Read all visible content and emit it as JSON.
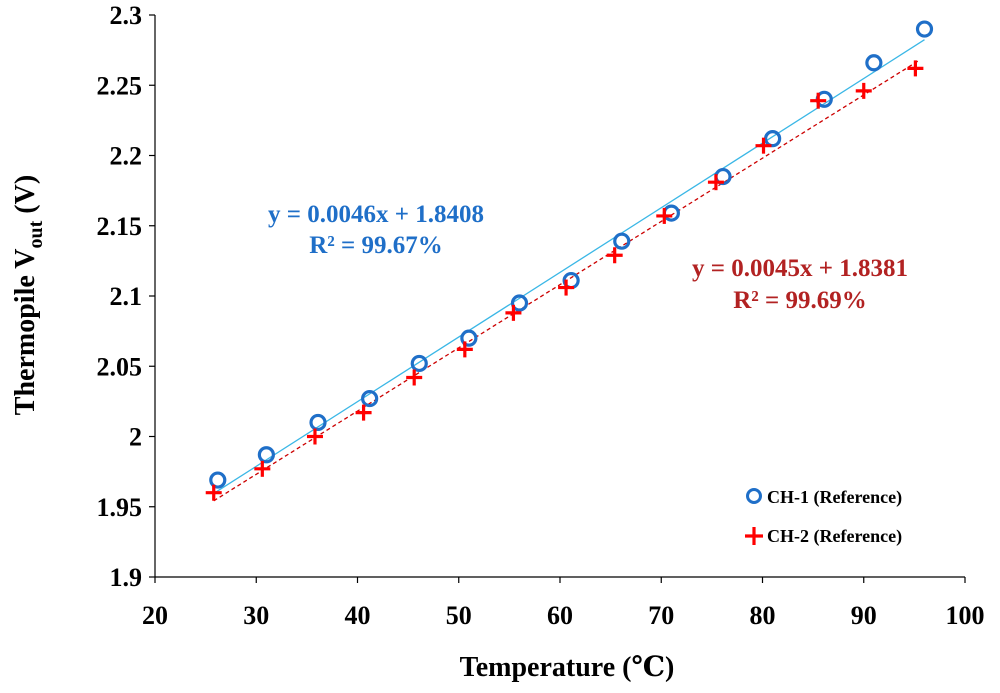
{
  "chart_data": {
    "type": "scatter",
    "xlabel": "Temperature (℃)",
    "ylabel": "Thermopile V",
    "ylabel_sub": "out",
    "ylabel_unit": " (V)",
    "xlim": [
      20,
      100
    ],
    "ylim": [
      1.9,
      2.3
    ],
    "xticks": [
      20,
      30,
      40,
      50,
      60,
      70,
      80,
      90,
      100
    ],
    "yticks": [
      1.9,
      1.95,
      2,
      2.05,
      2.1,
      2.15,
      2.2,
      2.25,
      2.3
    ],
    "ytick_labels": [
      "1.9",
      "1.95",
      "2",
      "2.05",
      "2.1",
      "2.15",
      "2.2",
      "2.25",
      "2.3"
    ],
    "grid": false,
    "legend_position": "bottom-right",
    "series": [
      {
        "name": "CH-1 (Reference)",
        "marker": "circle",
        "color": "#1f6fc8",
        "x": [
          26.2,
          31.0,
          36.1,
          41.2,
          46.1,
          51.0,
          56.0,
          61.1,
          66.1,
          71.0,
          76.1,
          81.0,
          86.1,
          91.0,
          96.0
        ],
        "y": [
          1.969,
          1.987,
          2.01,
          2.027,
          2.052,
          2.07,
          2.095,
          2.111,
          2.139,
          2.159,
          2.185,
          2.212,
          2.24,
          2.266,
          2.29
        ],
        "fit": {
          "slope": 0.0046,
          "intercept": 1.8408,
          "x_range": [
            25.8,
            96
          ],
          "line_color": "#3ab7e6",
          "dash": "solid"
        },
        "equation": "y = 0.0046x + 1.8408",
        "r2": "R² = 99.67%",
        "label_color": "#1f6fc8"
      },
      {
        "name": "CH-2 (Reference)",
        "marker": "plus",
        "color": "#ff0000",
        "x": [
          25.8,
          30.6,
          35.8,
          40.6,
          45.6,
          50.6,
          55.4,
          60.6,
          65.4,
          70.3,
          75.4,
          80.1,
          85.5,
          90.0,
          95.1
        ],
        "y": [
          1.96,
          1.977,
          2.0,
          2.017,
          2.042,
          2.062,
          2.088,
          2.106,
          2.129,
          2.157,
          2.181,
          2.207,
          2.239,
          2.246,
          2.262
        ],
        "fit": {
          "slope": 0.0045,
          "intercept": 1.8381,
          "x_range": [
            25.8,
            95.5
          ],
          "line_color": "#cc0000",
          "dash": "dashed"
        },
        "equation": "y = 0.0045x + 1.8381",
        "r2": "R² = 99.69%",
        "label_color": "#b22222"
      }
    ]
  }
}
